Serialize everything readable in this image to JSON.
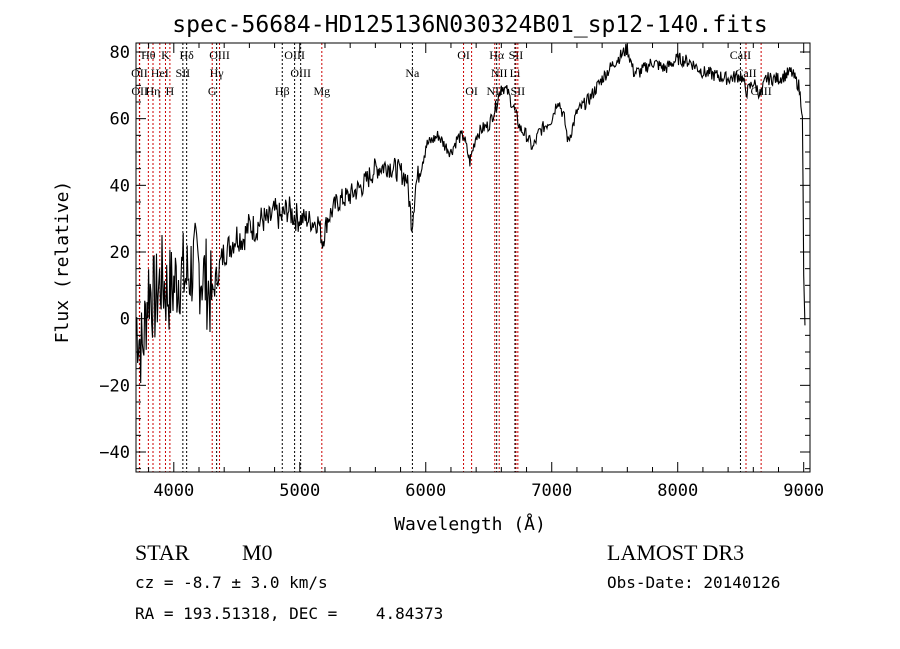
{
  "chart_data": {
    "type": "line",
    "title": "spec-56684-HD125136N030324B01_sp12-140.fits",
    "xlabel": "Wavelength (Å)",
    "ylabel": "Flux (relative)",
    "xlim": [
      3700,
      9050
    ],
    "ylim": [
      -46,
      82.7
    ],
    "xticks": [
      4000,
      5000,
      6000,
      7000,
      8000,
      9000
    ],
    "yticks": [
      -40,
      -20,
      0,
      20,
      40,
      60,
      80
    ],
    "grid": false,
    "series": [
      {
        "name": "flux",
        "points": [
          [
            3700,
            0
          ],
          [
            3750,
            -10
          ],
          [
            3800,
            10
          ],
          [
            3850,
            5
          ],
          [
            3900,
            12
          ],
          [
            3950,
            8
          ],
          [
            4000,
            10
          ],
          [
            4050,
            14
          ],
          [
            4100,
            12
          ],
          [
            4150,
            16
          ],
          [
            4200,
            15
          ],
          [
            4250,
            12
          ],
          [
            4300,
            6
          ],
          [
            4350,
            14
          ],
          [
            4400,
            20
          ],
          [
            4450,
            22
          ],
          [
            4500,
            25
          ],
          [
            4550,
            24
          ],
          [
            4600,
            28
          ],
          [
            4650,
            27
          ],
          [
            4700,
            30
          ],
          [
            4750,
            29
          ],
          [
            4800,
            32
          ],
          [
            4850,
            30
          ],
          [
            4900,
            33
          ],
          [
            4950,
            31
          ],
          [
            5000,
            30
          ],
          [
            5050,
            30
          ],
          [
            5100,
            29
          ],
          [
            5150,
            29
          ],
          [
            5180,
            23
          ],
          [
            5220,
            30
          ],
          [
            5300,
            35
          ],
          [
            5400,
            37
          ],
          [
            5500,
            40
          ],
          [
            5600,
            45
          ],
          [
            5700,
            46
          ],
          [
            5800,
            44
          ],
          [
            5850,
            42
          ],
          [
            5890,
            28
          ],
          [
            5920,
            40
          ],
          [
            6000,
            52
          ],
          [
            6100,
            55
          ],
          [
            6150,
            52
          ],
          [
            6200,
            50
          ],
          [
            6250,
            54
          ],
          [
            6300,
            55
          ],
          [
            6350,
            47
          ],
          [
            6400,
            55
          ],
          [
            6450,
            57
          ],
          [
            6500,
            58
          ],
          [
            6560,
            64
          ],
          [
            6600,
            70
          ],
          [
            6650,
            68
          ],
          [
            6700,
            63
          ],
          [
            6750,
            57
          ],
          [
            6800,
            55
          ],
          [
            6850,
            51
          ],
          [
            6900,
            56
          ],
          [
            6950,
            58
          ],
          [
            7000,
            60
          ],
          [
            7050,
            66
          ],
          [
            7100,
            60
          ],
          [
            7130,
            53
          ],
          [
            7200,
            62
          ],
          [
            7300,
            66
          ],
          [
            7400,
            72
          ],
          [
            7500,
            77
          ],
          [
            7600,
            81
          ],
          [
            7650,
            74
          ],
          [
            7700,
            74
          ],
          [
            7800,
            77
          ],
          [
            7900,
            75
          ],
          [
            8000,
            78
          ],
          [
            8100,
            77
          ],
          [
            8200,
            74
          ],
          [
            8300,
            73
          ],
          [
            8400,
            72
          ],
          [
            8500,
            73
          ],
          [
            8550,
            68
          ],
          [
            8600,
            71
          ],
          [
            8660,
            67
          ],
          [
            8700,
            72
          ],
          [
            8800,
            72
          ],
          [
            8900,
            74
          ],
          [
            8960,
            70
          ],
          [
            8990,
            62
          ],
          [
            9000,
            12
          ],
          [
            9010,
            -2
          ]
        ]
      }
    ],
    "lines": [
      {
        "label": "Hθ",
        "wave": 3798,
        "row": 0,
        "color": "#cc0000"
      },
      {
        "label": "K",
        "wave": 3934,
        "row": 0,
        "color": "#cc0000"
      },
      {
        "label": "Hδ",
        "wave": 4102,
        "row": 0,
        "color": "#000000"
      },
      {
        "label": "OIII",
        "wave": 4363,
        "row": 0,
        "color": "#cc0000"
      },
      {
        "label": "OIII",
        "wave": 4959,
        "row": 0,
        "color": "#000000"
      },
      {
        "label": "OI",
        "wave": 6300,
        "row": 0,
        "color": "#cc0000"
      },
      {
        "label": "Hα",
        "wave": 6563,
        "row": 0,
        "color": "#000000"
      },
      {
        "label": "SII",
        "wave": 6716,
        "row": 0,
        "color": "#cc0000"
      },
      {
        "label": "CaII",
        "wave": 8498,
        "row": 0,
        "color": "#000000"
      },
      {
        "label": "OII",
        "wave": 3727,
        "row": 1,
        "color": "#cc0000"
      },
      {
        "label": "HeI",
        "wave": 3889,
        "row": 1,
        "color": "#cc0000"
      },
      {
        "label": "SII",
        "wave": 4072,
        "row": 1,
        "color": "#000000"
      },
      {
        "label": "Hγ",
        "wave": 4340,
        "row": 1,
        "color": "#000000"
      },
      {
        "label": "OIII",
        "wave": 5007,
        "row": 1,
        "color": "#000000"
      },
      {
        "label": "Na",
        "wave": 5894,
        "row": 1,
        "color": "#000000"
      },
      {
        "label": "NII",
        "wave": 6583,
        "row": 1,
        "color": "#cc0000"
      },
      {
        "label": "Li",
        "wave": 6708,
        "row": 1,
        "color": "#000000"
      },
      {
        "label": "CaII",
        "wave": 8542,
        "row": 1,
        "color": "#cc0000"
      },
      {
        "label": "OII",
        "wave": 3729,
        "row": 2,
        "color": "#cc0000"
      },
      {
        "label": "Hη",
        "wave": 3835,
        "row": 2,
        "color": "#cc0000"
      },
      {
        "label": "H",
        "wave": 3969,
        "row": 2,
        "color": "#cc0000"
      },
      {
        "label": "G",
        "wave": 4305,
        "row": 2,
        "color": "#cc0000"
      },
      {
        "label": "Hβ",
        "wave": 4861,
        "row": 2,
        "color": "#000000"
      },
      {
        "label": "Mg",
        "wave": 5175,
        "row": 2,
        "color": "#cc0000"
      },
      {
        "label": "OI",
        "wave": 6364,
        "row": 2,
        "color": "#cc0000"
      },
      {
        "label": "NII",
        "wave": 6548,
        "row": 2,
        "color": "#cc0000"
      },
      {
        "label": "SII",
        "wave": 6731,
        "row": 2,
        "color": "#cc0000"
      },
      {
        "label": "CaII",
        "wave": 8662,
        "row": 2,
        "color": "#cc0000"
      }
    ]
  },
  "info": {
    "class": "STAR",
    "subclass": "M0",
    "cz": "cz = -8.7 ± 3.0 km/s",
    "radec": "RA = 193.51318, DEC =    4.84373",
    "survey": "LAMOST DR3",
    "obsdate": "Obs-Date: 20140126"
  }
}
